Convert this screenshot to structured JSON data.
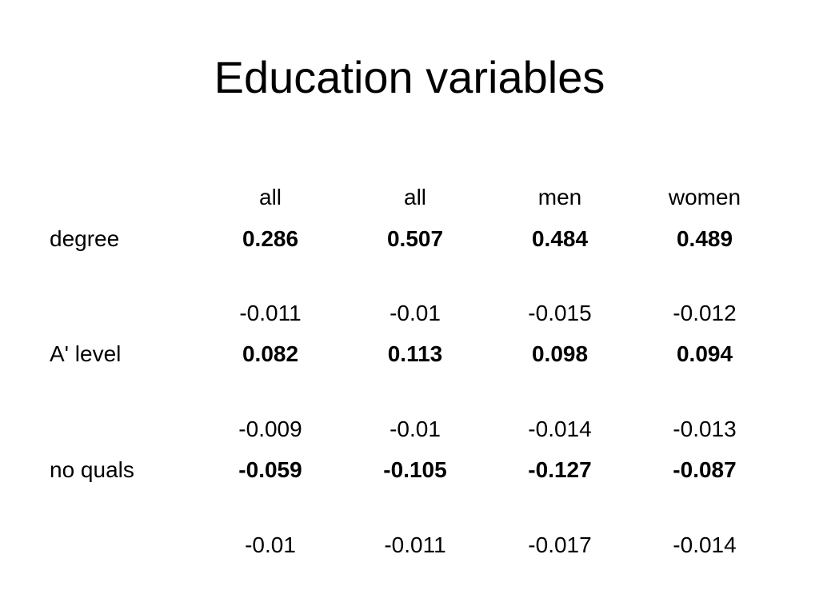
{
  "slide": {
    "title": "Education variables"
  },
  "table": {
    "columns": [
      "all",
      "all",
      "men",
      "women"
    ],
    "rows": [
      {
        "label": "degree",
        "coefficients": [
          "0.286",
          "0.507",
          "0.484",
          "0.489"
        ],
        "standard_errors": [
          "-0.011",
          "-0.01",
          "-0.015",
          "-0.012"
        ]
      },
      {
        "label": "A' level",
        "coefficients": [
          "0.082",
          "0.113",
          "0.098",
          "0.094"
        ],
        "standard_errors": [
          "-0.009",
          "-0.01",
          "-0.014",
          "-0.013"
        ]
      },
      {
        "label": "no quals",
        "coefficients": [
          "-0.059",
          "-0.105",
          "-0.127",
          "-0.087"
        ],
        "standard_errors": [
          "-0.01",
          "-0.011",
          "-0.017",
          "-0.014"
        ]
      }
    ]
  }
}
